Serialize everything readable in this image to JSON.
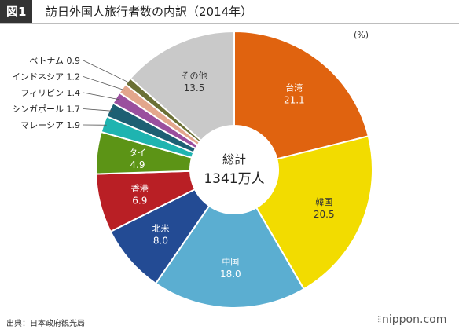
{
  "header": {
    "badge": "図1",
    "title": "訪日外国人旅行者数の内訳（2014年）"
  },
  "unit": "(%)",
  "center": {
    "line1": "総計",
    "line2": "1341万人"
  },
  "footer": {
    "source": "出典：日本政府観光局",
    "brand": "nippon.com",
    "brand_mark": "⫶⫶"
  },
  "chart_data": {
    "type": "pie",
    "style": "donut",
    "unit": "%",
    "slices": [
      {
        "label": "台湾",
        "value": 21.1,
        "color": "#e0630f"
      },
      {
        "label": "韓国",
        "value": 20.5,
        "color": "#f2dc00"
      },
      {
        "label": "中国",
        "value": 18.0,
        "color": "#5baed1"
      },
      {
        "label": "北米",
        "value": 8.0,
        "color": "#234b94"
      },
      {
        "label": "香港",
        "value": 6.9,
        "color": "#b91f25"
      },
      {
        "label": "タイ",
        "value": 4.9,
        "color": "#5c9416"
      },
      {
        "label": "マレーシア",
        "value": 1.9,
        "color": "#1fb4b0"
      },
      {
        "label": "シンガポール",
        "value": 1.7,
        "color": "#1d5f73"
      },
      {
        "label": "フィリピン",
        "value": 1.4,
        "color": "#9a4f9e"
      },
      {
        "label": "インドネシア",
        "value": 1.2,
        "color": "#e3a68c"
      },
      {
        "label": "ベトナム",
        "value": 0.9,
        "color": "#6b7035"
      },
      {
        "label": "その他",
        "value": 13.5,
        "color": "#c9c9c9"
      }
    ]
  }
}
